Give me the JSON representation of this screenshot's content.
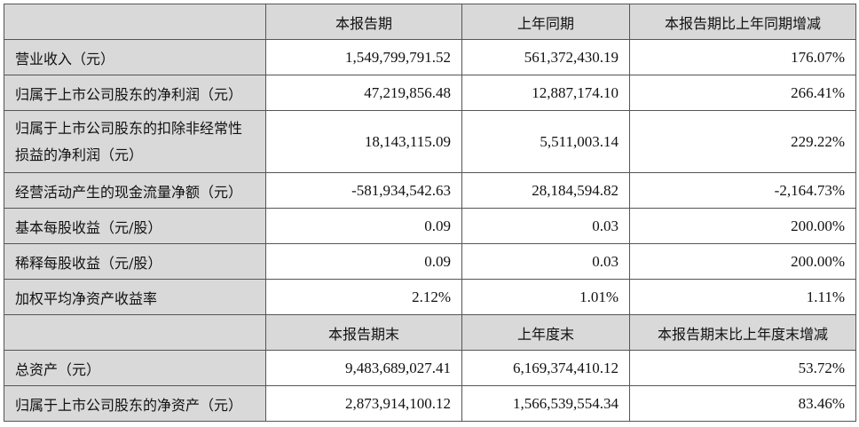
{
  "header1": [
    "",
    "本报告期",
    "上年同期",
    "本报告期比上年同期增减"
  ],
  "rows1": [
    {
      "label": "营业收入（元）",
      "current": "1,549,799,791.52",
      "prior": "561,372,430.19",
      "change": "176.07%"
    },
    {
      "label": "归属于上市公司股东的净利润（元）",
      "current": "47,219,856.48",
      "prior": "12,887,174.10",
      "change": "266.41%"
    },
    {
      "label": "归属于上市公司股东的扣除非经常性损益的净利润（元）",
      "current": "18,143,115.09",
      "prior": "5,511,003.14",
      "change": "229.22%"
    },
    {
      "label": "经营活动产生的现金流量净额（元）",
      "current": "-581,934,542.63",
      "prior": "28,184,594.82",
      "change": "-2,164.73%"
    },
    {
      "label": "基本每股收益（元/股）",
      "current": "0.09",
      "prior": "0.03",
      "change": "200.00%"
    },
    {
      "label": "稀释每股收益（元/股）",
      "current": "0.09",
      "prior": "0.03",
      "change": "200.00%"
    },
    {
      "label": "加权平均净资产收益率",
      "current": "2.12%",
      "prior": "1.01%",
      "change": "1.11%"
    }
  ],
  "header2": [
    "",
    "本报告期末",
    "上年度末",
    "本报告期末比上年度末增减"
  ],
  "rows2": [
    {
      "label": "总资产（元）",
      "current": "9,483,689,027.41",
      "prior": "6,169,374,410.12",
      "change": "53.72%"
    },
    {
      "label": "归属于上市公司股东的净资产（元）",
      "current": "2,873,914,100.12",
      "prior": "1,566,539,554.34",
      "change": "83.46%"
    }
  ],
  "colors": {
    "header_bg": "#d9d9d9",
    "border": "#555555"
  }
}
